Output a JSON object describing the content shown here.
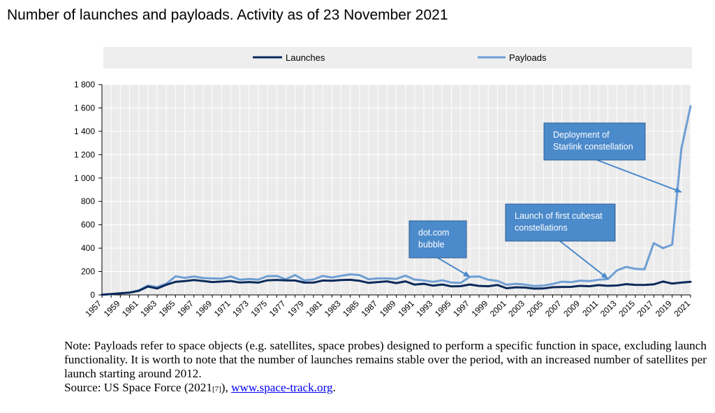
{
  "title": "Number of launches and payloads. Activity as of 23 November 2021",
  "colors": {
    "launches": "#0b2a5a",
    "payloads": "#6f9fd4",
    "annotation_fill": "#4b8acb",
    "annotation_stroke": "#2e5f94",
    "legend_bg": "#eeeeee",
    "plot_bg": "#ebebeb"
  },
  "chart_data": {
    "type": "line",
    "legend": [
      "Launches",
      "Payloads"
    ],
    "legend_position": "top",
    "ylim": [
      0,
      1800
    ],
    "yticks": [
      "0",
      "200",
      "400",
      "600",
      "800",
      "1 000",
      "1 200",
      "1 400",
      "1 600",
      "1 800"
    ],
    "x": [
      1957,
      1958,
      1959,
      1960,
      1961,
      1962,
      1963,
      1964,
      1965,
      1966,
      1967,
      1968,
      1969,
      1970,
      1971,
      1972,
      1973,
      1974,
      1975,
      1976,
      1977,
      1978,
      1979,
      1980,
      1981,
      1982,
      1983,
      1984,
      1985,
      1986,
      1987,
      1988,
      1989,
      1990,
      1991,
      1992,
      1993,
      1994,
      1995,
      1996,
      1997,
      1998,
      1999,
      2000,
      2001,
      2002,
      2003,
      2004,
      2005,
      2006,
      2007,
      2008,
      2009,
      2010,
      2011,
      2012,
      2013,
      2014,
      2015,
      2016,
      2017,
      2018,
      2019,
      2020,
      2021
    ],
    "xticks": [
      "1957",
      "1959",
      "1961",
      "1963",
      "1965",
      "1967",
      "1969",
      "1971",
      "1973",
      "1975",
      "1977",
      "1979",
      "1981",
      "1983",
      "1985",
      "1987",
      "1989",
      "1991",
      "1993",
      "1995",
      "1997",
      "1999",
      "2001",
      "2003",
      "2005",
      "2007",
      "2009",
      "2011",
      "2013",
      "2015",
      "2017",
      "2019",
      "2021"
    ],
    "series": [
      {
        "name": "Launches",
        "values": [
          2,
          8,
          14,
          19,
          35,
          72,
          55,
          87,
          112,
          118,
          127,
          119,
          110,
          114,
          119,
          106,
          110,
          105,
          125,
          128,
          124,
          123,
          105,
          105,
          123,
          121,
          127,
          129,
          121,
          103,
          110,
          116,
          101,
          116,
          88,
          95,
          79,
          89,
          73,
          75,
          89,
          77,
          74,
          85,
          57,
          65,
          63,
          54,
          55,
          66,
          68,
          69,
          78,
          74,
          84,
          78,
          81,
          92,
          86,
          85,
          90,
          114,
          97,
          105,
          112
        ]
      },
      {
        "name": "Payloads",
        "values": [
          3,
          6,
          15,
          20,
          38,
          80,
          67,
          96,
          159,
          146,
          158,
          144,
          141,
          139,
          158,
          130,
          136,
          131,
          160,
          162,
          134,
          170,
          124,
          132,
          162,
          149,
          163,
          176,
          170,
          134,
          141,
          141,
          137,
          165,
          131,
          124,
          112,
          125,
          106,
          102,
          155,
          158,
          130,
          120,
          87,
          95,
          88,
          76,
          79,
          94,
          113,
          109,
          122,
          118,
          130,
          135,
          210,
          240,
          223,
          220,
          443,
          400,
          430,
          1250,
          1615
        ]
      }
    ],
    "annotations": [
      {
        "text_lines": [
          "dot.com",
          "bubble"
        ],
        "points_to": {
          "x": 1997,
          "y": 155
        }
      },
      {
        "text_lines": [
          "Launch of first cubesat",
          "constellations"
        ],
        "points_to": {
          "x": 2012,
          "y": 140
        }
      },
      {
        "text_lines": [
          "Deployment of",
          "Starlink constellation"
        ],
        "points_to": {
          "x": 2020,
          "y": 880
        }
      }
    ]
  },
  "notes": {
    "note": "Note: Payloads refer to space objects (e.g. satellites, space probes) designed to perform a specific function in space, excluding launch functionality. It is worth to note that the number of launches remains stable over the period, with an increased number of satellites per launch starting around 2012.",
    "source_prefix": "Source: US Space Force (2021",
    "source_ref": "[7]",
    "source_mid": "), ",
    "source_link": "www.space-track.org",
    "source_suffix": "."
  }
}
